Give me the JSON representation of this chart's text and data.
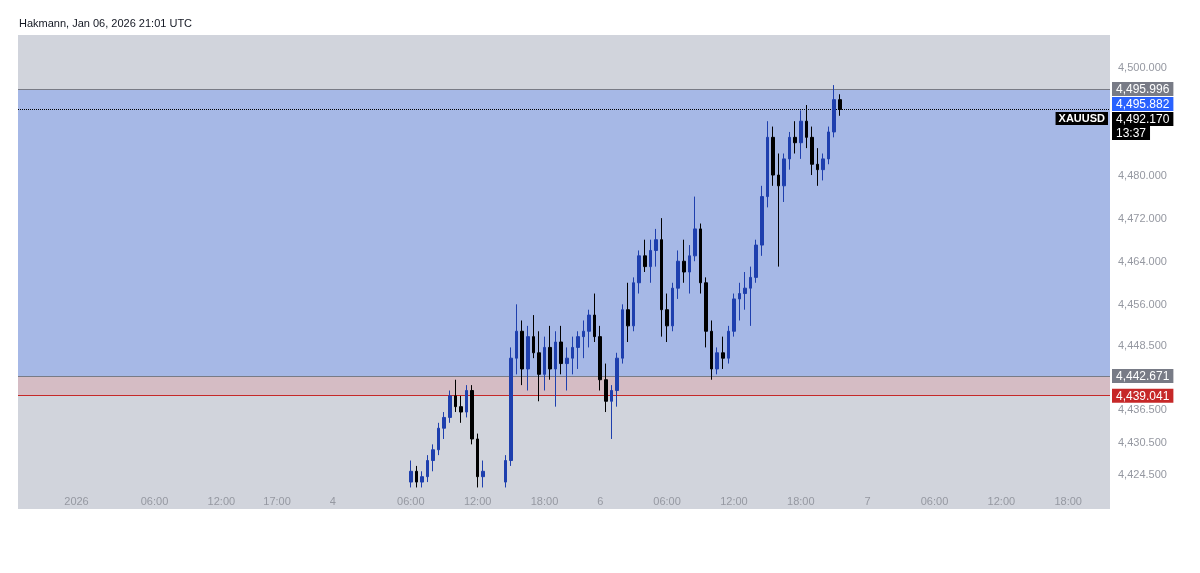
{
  "chart_data": {
    "type": "candlestick",
    "title": "Hakmann, Jan 06, 2026 21:01 UTC",
    "categories": [
      null,
      null,
      null,
      null,
      null,
      null,
      null,
      null,
      null,
      null,
      "2026",
      null,
      null,
      null,
      null,
      null,
      null,
      null,
      null,
      null,
      null,
      null,
      null,
      null,
      "06:00",
      null,
      null,
      null,
      null,
      null,
      null,
      null,
      null,
      null,
      null,
      null,
      "12:00",
      null,
      null,
      null,
      null,
      null,
      null,
      null,
      null,
      null,
      "17:00",
      null,
      null,
      null,
      null,
      null,
      null,
      null,
      null,
      null,
      "4",
      null,
      null,
      null,
      null,
      null,
      null,
      null,
      null,
      null,
      null,
      null,
      null,
      null,
      "06:00",
      null,
      null,
      null,
      null,
      null,
      null,
      null,
      null,
      null,
      null,
      null,
      "12:00",
      null,
      null,
      null,
      null,
      null,
      null,
      null,
      null,
      null,
      null,
      null,
      "18:00",
      null,
      null,
      null,
      null,
      null,
      null,
      null,
      null,
      null,
      "6",
      null,
      null,
      null,
      null,
      null,
      null,
      null,
      null,
      null,
      null,
      null,
      "06:00",
      null,
      null,
      null,
      null,
      null,
      null,
      null,
      null,
      null,
      null,
      null,
      "12:00",
      null,
      null,
      null,
      null,
      null,
      null,
      null,
      null,
      null,
      null,
      null,
      "18:00",
      null,
      null,
      null,
      null,
      null,
      null,
      null,
      null,
      null,
      null,
      null,
      "7",
      null,
      null,
      null,
      null,
      null,
      null,
      null,
      null,
      null,
      null,
      null,
      "06:00",
      null,
      null,
      null,
      null,
      null,
      null,
      null,
      null,
      null,
      null,
      null,
      "12:00",
      null,
      null,
      null,
      null,
      null,
      null,
      null,
      null,
      null,
      null,
      null,
      "18:00",
      null,
      null,
      null,
      null,
      null,
      null,
      null
    ],
    "ylim": [
      4418,
      4506
    ],
    "yticks": [
      {
        "value": 4424.5,
        "label": "4,424.500"
      },
      {
        "value": 4430.5,
        "label": "4,430.500"
      },
      {
        "value": 4436.5,
        "label": "4,436.500"
      },
      {
        "value": 4448.5,
        "label": "4,448.500"
      },
      {
        "value": 4456,
        "label": "4,456.000"
      },
      {
        "value": 4464,
        "label": "4,464.000"
      },
      {
        "value": 4472,
        "label": "4,472.000"
      },
      {
        "value": 4480,
        "label": "4,480.000"
      },
      {
        "value": 4500,
        "label": "4,500.000"
      }
    ],
    "grid": false,
    "series": [
      {
        "color": "#1e3fae",
        "ohlc": [
          null,
          null,
          null,
          null,
          null,
          null,
          null,
          null,
          null,
          null,
          null,
          null,
          null,
          null,
          null,
          null,
          null,
          null,
          null,
          null,
          null,
          null,
          null,
          null,
          null,
          null,
          null,
          null,
          null,
          null,
          null,
          null,
          null,
          null,
          null,
          null,
          null,
          null,
          null,
          null,
          null,
          null,
          null,
          null,
          null,
          null,
          null,
          null,
          null,
          null,
          null,
          null,
          null,
          null,
          null,
          null,
          null,
          null,
          null,
          null,
          null,
          null,
          null,
          null,
          null,
          null,
          null,
          null,
          null,
          null,
          [
            4423,
            4427,
            4422,
            4425
          ],
          null,
          [
            4423,
            4425,
            4422,
            4424
          ],
          [
            4424,
            4428,
            4423,
            4427
          ],
          [
            4427,
            4430,
            4425,
            4429
          ],
          [
            4429,
            4434,
            4428,
            4433
          ],
          [
            4433,
            4436,
            4431,
            4435
          ],
          [
            4435,
            4440,
            4434,
            4439
          ],
          null,
          null,
          [
            4436,
            4441,
            4435,
            4440
          ],
          null,
          null,
          [
            4424,
            4427,
            4422,
            4425
          ],
          null,
          null,
          null,
          [
            4423,
            4428,
            4422,
            4427
          ],
          [
            4427,
            4448,
            4426,
            4446
          ],
          [
            4446,
            4456,
            4443,
            4451
          ],
          null,
          [
            4444,
            4452,
            4440,
            4450
          ],
          null,
          null,
          [
            4443,
            4450,
            4440,
            4448
          ],
          null,
          [
            4444,
            4451,
            4437,
            4449
          ],
          null,
          [
            4445,
            4448,
            4440,
            4446
          ],
          [
            4446,
            4450,
            4443,
            4448
          ],
          [
            4448,
            4451,
            4444,
            4450
          ],
          [
            4450,
            4453,
            4446,
            4451
          ],
          [
            4451,
            4455,
            4448,
            4454
          ],
          null,
          null,
          null,
          [
            4438,
            4441,
            4431,
            4440
          ],
          [
            4440,
            4447,
            4437,
            4446
          ],
          [
            4446,
            4456,
            4445,
            4455
          ],
          null,
          [
            4452,
            4461,
            4451,
            4460
          ],
          [
            4460,
            4466,
            4458,
            4465
          ],
          null,
          [
            4463,
            4468,
            4460,
            4466
          ],
          [
            4466,
            4470,
            4463,
            4468
          ],
          null,
          null,
          [
            4452,
            4460,
            4451,
            4459
          ],
          [
            4459,
            4466,
            4457,
            4464
          ],
          null,
          [
            4462,
            4467,
            4458,
            4465
          ],
          [
            4465,
            4476,
            4464,
            4470
          ],
          null,
          null,
          null,
          [
            4444,
            4448,
            4443,
            4447
          ],
          null,
          [
            4446,
            4452,
            4445,
            4451
          ],
          [
            4451,
            4458,
            4450,
            4457
          ],
          [
            4457,
            4460,
            4453,
            4458
          ],
          [
            4458,
            4462,
            4455,
            4459
          ],
          [
            4459,
            4463,
            4452,
            4461
          ],
          [
            4461,
            4468,
            4460,
            4467
          ],
          [
            4467,
            4478,
            4465,
            4476
          ],
          [
            4476,
            4490,
            4474,
            4487
          ],
          null,
          null,
          [
            4478,
            4484,
            4475,
            4483
          ],
          [
            4483,
            4488,
            4481,
            4487
          ],
          null,
          [
            4486,
            4492,
            4483,
            4490
          ],
          null,
          null,
          null,
          [
            4481,
            4484,
            4479,
            4483
          ],
          [
            4483,
            4489,
            4482,
            4488
          ],
          [
            4488,
            4496.7,
            4487,
            4494
          ],
          null,
          null,
          null,
          null,
          null,
          null,
          null,
          null,
          null,
          null,
          null,
          null,
          null,
          null,
          null,
          null,
          null,
          null,
          null,
          null,
          null,
          null,
          null,
          null,
          null,
          null,
          null,
          null,
          null,
          null,
          null,
          null,
          null,
          null,
          null,
          null,
          null,
          null,
          null,
          null,
          null,
          null,
          null,
          null,
          null,
          null,
          null,
          null,
          null
        ]
      },
      {
        "color": "#000000",
        "ohlc": [
          null,
          null,
          null,
          null,
          null,
          null,
          null,
          null,
          null,
          null,
          null,
          null,
          null,
          null,
          null,
          null,
          null,
          null,
          null,
          null,
          null,
          null,
          null,
          null,
          null,
          null,
          null,
          null,
          null,
          null,
          null,
          null,
          null,
          null,
          null,
          null,
          null,
          null,
          null,
          null,
          null,
          null,
          null,
          null,
          null,
          null,
          null,
          null,
          null,
          null,
          null,
          null,
          null,
          null,
          null,
          null,
          null,
          null,
          null,
          null,
          null,
          null,
          null,
          null,
          null,
          null,
          null,
          null,
          null,
          null,
          null,
          [
            4425,
            4426,
            4422,
            4423
          ],
          null,
          null,
          null,
          null,
          null,
          null,
          [
            4439,
            4442,
            4436,
            4437
          ],
          [
            4437,
            4439,
            4434,
            4436
          ],
          null,
          [
            4440,
            4441,
            4430,
            4431
          ],
          [
            4431,
            4432,
            4422,
            4424
          ],
          null,
          null,
          null,
          null,
          null,
          null,
          null,
          [
            4451,
            4453,
            4441,
            4444
          ],
          null,
          [
            4450,
            4454,
            4446,
            4447
          ],
          [
            4447,
            4451,
            4438,
            4443
          ],
          null,
          [
            4448,
            4452,
            4442,
            4444
          ],
          null,
          [
            4449,
            4452,
            4443,
            4445
          ],
          null,
          null,
          null,
          null,
          null,
          [
            4454,
            4458,
            4449,
            4450
          ],
          [
            4450,
            4452,
            4440,
            4442
          ],
          [
            4442,
            4445,
            4436,
            4438
          ],
          null,
          null,
          null,
          [
            4455,
            4460,
            4449,
            4452
          ],
          null,
          null,
          [
            4465,
            4468,
            4462,
            4463
          ],
          null,
          null,
          [
            4468,
            4472,
            4450,
            4455
          ],
          [
            4455,
            4458,
            4449,
            4452
          ],
          null,
          null,
          [
            4464,
            4468,
            4460,
            4462
          ],
          null,
          null,
          [
            4470,
            4471,
            4458,
            4460
          ],
          [
            4460,
            4461,
            4448,
            4451
          ],
          [
            4451,
            4453,
            4442,
            4444
          ],
          null,
          [
            4447,
            4450,
            4444,
            4446
          ],
          null,
          null,
          null,
          null,
          null,
          null,
          null,
          null,
          [
            4487,
            4489,
            4478,
            4480
          ],
          [
            4480,
            4484,
            4463,
            4478
          ],
          null,
          null,
          [
            4487,
            4490,
            4484,
            4486
          ],
          null,
          [
            4490,
            4493,
            4485,
            4487
          ],
          [
            4487,
            4489,
            4480,
            4482
          ],
          [
            4482,
            4485,
            4478,
            4481
          ],
          null,
          null,
          null,
          [
            4494,
            4495,
            4491,
            4492.17
          ],
          null,
          null,
          null,
          null,
          null,
          null,
          null,
          null,
          null,
          null,
          null,
          null,
          null,
          null,
          null,
          null,
          null,
          null,
          null,
          null,
          null,
          null,
          null,
          null,
          null,
          null,
          null,
          null,
          null,
          null,
          null,
          null,
          null,
          null,
          null,
          null,
          null,
          null,
          null,
          null,
          null,
          null,
          null,
          null,
          null,
          null,
          null,
          null
        ]
      }
    ],
    "bands": [
      {
        "axis": "y",
        "from": 4442.671,
        "to": 4495.882,
        "color": "#7b9cf0",
        "label": "4,495.882"
      },
      {
        "axis": "y",
        "from": 4439.041,
        "to": 4442.671,
        "color": "#d9a3ab"
      }
    ],
    "ref_lines": [
      {
        "axis": "y",
        "value": 4495.996,
        "label": "4,495.996",
        "color": "#787b86",
        "line_style": "solid"
      },
      {
        "axis": "y",
        "value": 4492.17,
        "label": "4,492.170",
        "color": "#000000",
        "line_style": "dotted"
      },
      {
        "axis": "y",
        "value": 4442.671,
        "label": "4,442.671",
        "color": "#787b86",
        "line_style": "solid"
      },
      {
        "axis": "y",
        "value": 4439.041,
        "label": "4,439.041",
        "color": "#c62828",
        "line_style": "solid"
      }
    ],
    "annotations": [
      "XAUUSD",
      "13:37"
    ]
  }
}
